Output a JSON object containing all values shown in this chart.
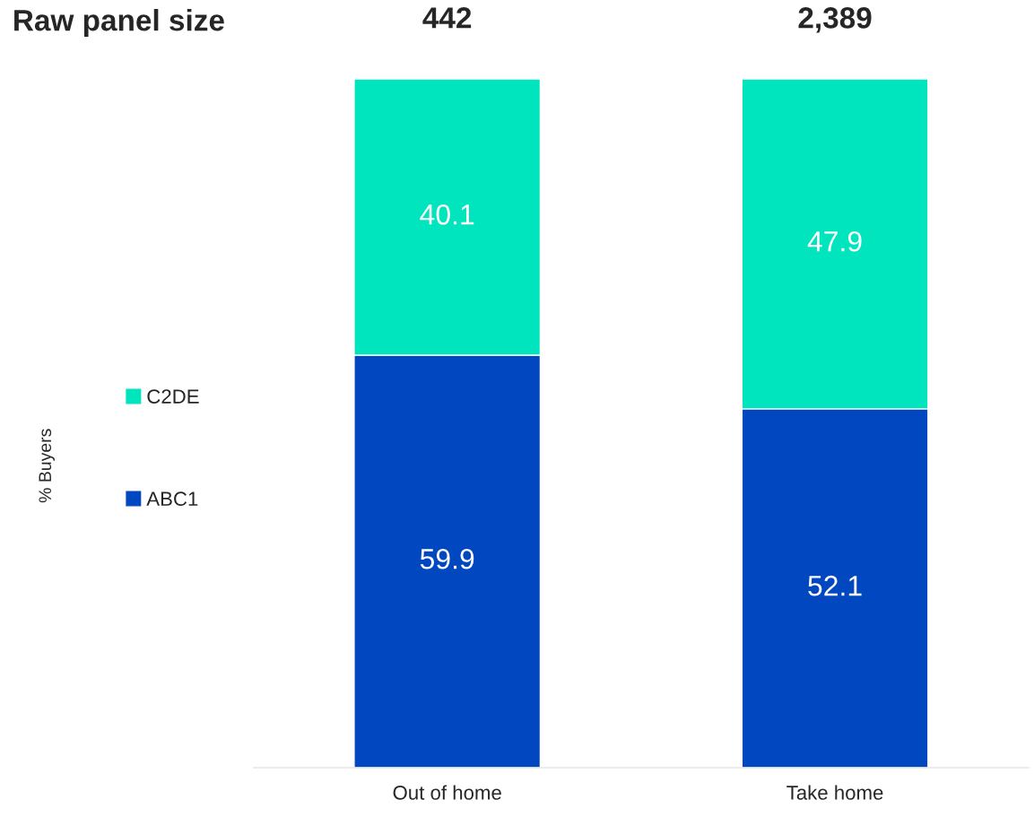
{
  "chart_data": {
    "type": "bar",
    "stacked": true,
    "categories": [
      "Out of home",
      "Take home"
    ],
    "series": [
      {
        "name": "ABC1",
        "color": "#0047c0",
        "values": [
          59.9,
          52.1
        ]
      },
      {
        "name": "C2DE",
        "color": "#00e5be",
        "values": [
          40.1,
          47.9
        ]
      }
    ],
    "ylim": [
      0,
      100
    ],
    "tick_labels": "x",
    "data_labels": true,
    "legend": "left",
    "annotations": [
      "Raw panel size",
      "442",
      "2,389",
      "% Buyers"
    ]
  }
}
